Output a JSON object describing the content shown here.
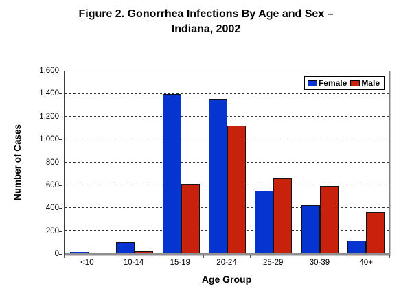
{
  "chart_data": {
    "type": "bar",
    "title_line1": "Figure 2. Gonorrhea Infections By Age and Sex –",
    "title_line2": "Indiana, 2002",
    "xlabel": "Age Group",
    "ylabel": "Number of Cases",
    "ylim": [
      0,
      1600
    ],
    "ytick_step": 200,
    "ytick_labels": [
      "0",
      "200",
      "400",
      "600",
      "800",
      "1,000",
      "1,200",
      "1,400",
      "1,600"
    ],
    "grid": "horizontal-dashed",
    "legend_position": "top-right-inside",
    "categories": [
      "<10",
      "10-14",
      "15-19",
      "20-24",
      "25-29",
      "30-39",
      "40+"
    ],
    "series": [
      {
        "name": "Female",
        "color": "#0634D1",
        "values": [
          10,
          95,
          1400,
          1350,
          550,
          425,
          110
        ]
      },
      {
        "name": "Male",
        "color": "#C9220C",
        "values": [
          0,
          20,
          610,
          1125,
          660,
          590,
          360
        ]
      }
    ],
    "colors": {
      "gridline": "#333333",
      "plot_border": "#7f7f7f",
      "axis": "#3c3c3c",
      "bar_outline": "#141414"
    }
  }
}
